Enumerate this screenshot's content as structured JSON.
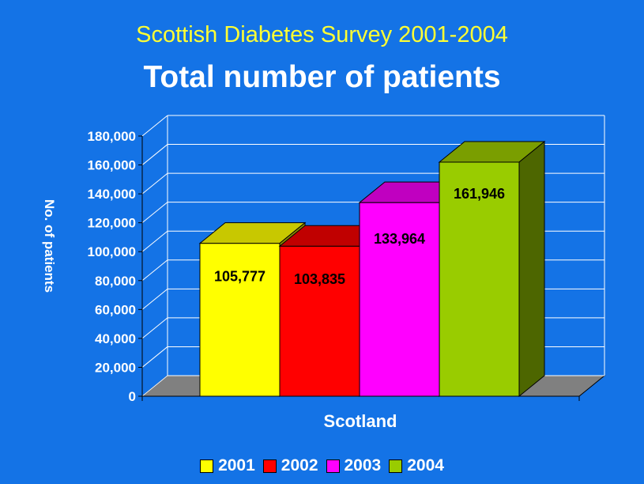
{
  "subtitle": "Scottish Diabetes Survey 2001-2004",
  "title": "Total number of patients",
  "colors": {
    "background": "#1473e6",
    "grid": "#ffffff",
    "floor": "#808080"
  },
  "chart_data": {
    "type": "bar",
    "categories": [
      "Scotland"
    ],
    "xlabel": "Scotland",
    "ylabel": "No. of patients",
    "ylim": [
      0,
      180000
    ],
    "yticks": [
      "0",
      "20,000",
      "40,000",
      "60,000",
      "80,000",
      "100,000",
      "120,000",
      "140,000",
      "160,000",
      "180,000"
    ],
    "series": [
      {
        "name": "2001",
        "values": [
          105777
        ],
        "label": "105,777",
        "color": "#ffff00",
        "top": "#c8c800",
        "side": "#8a8a00"
      },
      {
        "name": "2002",
        "values": [
          103835
        ],
        "label": "103,835",
        "color": "#ff0000",
        "top": "#c00000",
        "side": "#800000"
      },
      {
        "name": "2003",
        "values": [
          133964
        ],
        "label": "133,964",
        "color": "#ff00ff",
        "top": "#c000c0",
        "side": "#800080"
      },
      {
        "name": "2004",
        "values": [
          161946
        ],
        "label": "161,946",
        "color": "#99cc00",
        "top": "#7a9e00",
        "side": "#4d6600"
      }
    ],
    "grid": true,
    "legend": "bottom"
  }
}
